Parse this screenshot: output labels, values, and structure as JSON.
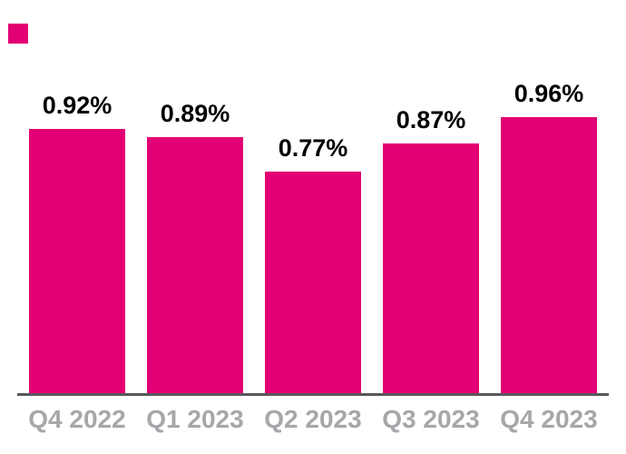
{
  "canvas": {
    "background": "#FFFFFF"
  },
  "brand_square": {
    "color": "#E20074"
  },
  "chart_data": {
    "type": "bar",
    "title": "",
    "xlabel": "",
    "ylabel": "",
    "categories": [
      "Q4 2022",
      "Q1 2023",
      "Q2 2023",
      "Q3 2023",
      "Q4 2023"
    ],
    "values": [
      0.92,
      0.89,
      0.77,
      0.87,
      0.96
    ],
    "value_labels": [
      "0.92%",
      "0.89%",
      "0.77%",
      "0.87%",
      "0.96%"
    ],
    "ylim": [
      0,
      1.0
    ],
    "grid": false,
    "legend": "none",
    "y_axis_shown": false,
    "x_axis_line_shown": true,
    "bar_color": "#E20074",
    "axis_line_color": "#58585A",
    "tick_label_color": "#A5A7AA",
    "value_label_color": "#000000"
  }
}
